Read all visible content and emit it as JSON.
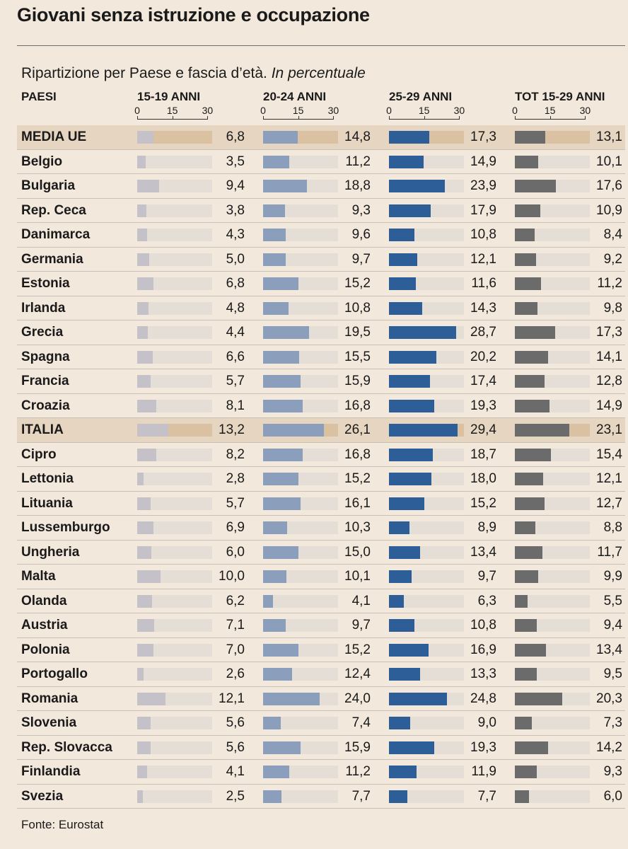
{
  "title": "Giovani senza istruzione e occupazione",
  "subtitle": "Ripartizione per Paese e fascia d’età.",
  "subtitle_italic": "In percentuale",
  "source": "Fonte: Eurostat",
  "chart_data": {
    "type": "bar",
    "orientation": "horizontal",
    "country_header": "PAESI",
    "axis_ticks": [
      "0",
      "15",
      "30"
    ],
    "xlim": [
      0,
      30
    ],
    "highlighted": [
      "MEDIA UE",
      "ITALIA"
    ],
    "colors": {
      "15-19 ANNI": "#c4c2c8",
      "20-24 ANNI": "#8b9fbd",
      "25-29 ANNI": "#2e5e98",
      "TOT 15-29 ANNI": "#6b6b6b"
    },
    "categories": [
      "MEDIA UE",
      "Belgio",
      "Bulgaria",
      "Rep. Ceca",
      "Danimarca",
      "Germania",
      "Estonia",
      "Irlanda",
      "Grecia",
      "Spagna",
      "Francia",
      "Croazia",
      "ITALIA",
      "Cipro",
      "Lettonia",
      "Lituania",
      "Lussemburgo",
      "Ungheria",
      "Malta",
      "Olanda",
      "Austria",
      "Polonia",
      "Portogallo",
      "Romania",
      "Slovenia",
      "Rep. Slovacca",
      "Finlandia",
      "Svezia"
    ],
    "series": [
      {
        "name": "15-19 ANNI",
        "values": [
          "6,8",
          "3,5",
          "9,4",
          "3,8",
          "4,3",
          "5,0",
          "6,8",
          "4,8",
          "4,4",
          "6,6",
          "5,7",
          "8,1",
          "13,2",
          "8,2",
          "2,8",
          "5,7",
          "6,9",
          "6,0",
          "10,0",
          "6,2",
          "7,1",
          "7,0",
          "2,6",
          "12,1",
          "5,6",
          "5,6",
          "4,1",
          "2,5"
        ]
      },
      {
        "name": "20-24 ANNI",
        "values": [
          "14,8",
          "11,2",
          "18,8",
          "9,3",
          "9,6",
          "9,7",
          "15,2",
          "10,8",
          "19,5",
          "15,5",
          "15,9",
          "16,8",
          "26,1",
          "16,8",
          "15,2",
          "16,1",
          "10,3",
          "15,0",
          "10,1",
          "4,1",
          "9,7",
          "15,2",
          "12,4",
          "24,0",
          "7,4",
          "15,9",
          "11,2",
          "7,7"
        ]
      },
      {
        "name": "25-29 ANNI",
        "values": [
          "17,3",
          "14,9",
          "23,9",
          "17,9",
          "10,8",
          "12,1",
          "11,6",
          "14,3",
          "28,7",
          "20,2",
          "17,4",
          "19,3",
          "29,4",
          "18,7",
          "18,0",
          "15,2",
          "8,9",
          "13,4",
          "9,7",
          "6,3",
          "10,8",
          "16,9",
          "13,3",
          "24,8",
          "9,0",
          "19,3",
          "11,9",
          "7,7"
        ]
      },
      {
        "name": "TOT 15-29 ANNI",
        "values": [
          "13,1",
          "10,1",
          "17,6",
          "10,9",
          "8,4",
          "9,2",
          "11,2",
          "9,8",
          "17,3",
          "14,1",
          "12,8",
          "14,9",
          "23,1",
          "15,4",
          "12,1",
          "12,7",
          "8,8",
          "11,7",
          "9,9",
          "5,5",
          "9,4",
          "13,4",
          "9,5",
          "20,3",
          "7,3",
          "14,2",
          "9,3",
          "6,0"
        ]
      }
    ]
  }
}
